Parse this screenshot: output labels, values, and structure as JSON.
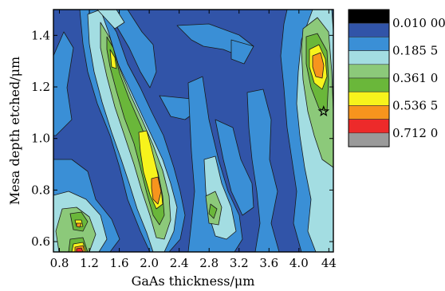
{
  "chart_data": {
    "type": "heatmap",
    "style": "filled contour map",
    "xlabel": "GaAs thickness/μm",
    "ylabel": "Mesa depth etched/μm",
    "x_ticks": [
      "0.8",
      "1.2",
      "1.6",
      "2.0",
      "2.4",
      "2.8",
      "3.2",
      "3.6",
      "4.0",
      "44"
    ],
    "y_ticks": [
      "0.6",
      "0.8",
      "1.0",
      "1.2",
      "1.4"
    ],
    "xlim": [
      0.72,
      4.46
    ],
    "ylim": [
      0.56,
      1.5
    ],
    "legend_labels": [
      "0.010 00",
      "0.185 5",
      "0.361 0",
      "0.536 5",
      "0.712 0"
    ],
    "legend_placement": "right",
    "levels": [
      {
        "color": "#000000"
      },
      {
        "color": "#3154a8"
      },
      {
        "color": "#3a8fd6"
      },
      {
        "color": "#a3dde2"
      },
      {
        "color": "#8cc97a"
      },
      {
        "color": "#6ab73a"
      },
      {
        "color": "#f7f31c"
      },
      {
        "color": "#f7941d"
      },
      {
        "color": "#ed2a2a"
      },
      {
        "color": "#9a9a9a"
      }
    ],
    "marker": {
      "symbol": "star",
      "x": 4.33,
      "y": 1.105
    }
  }
}
